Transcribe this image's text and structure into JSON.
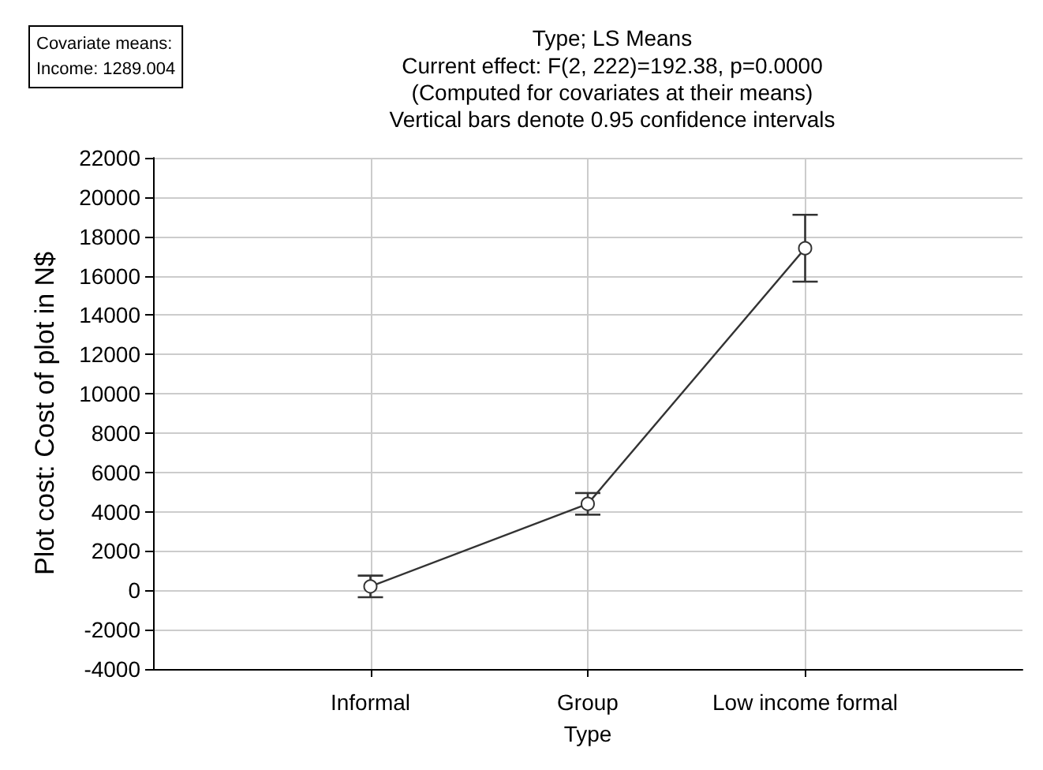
{
  "chart_data": {
    "type": "line",
    "title": "Type; LS Means",
    "subtitle": "Current effect: F(2, 222)=192.38, p=0.0000\n(Computed for covariates at their means)\nVertical bars denote 0.95 confidence intervals",
    "xlabel": "Type",
    "ylabel": "Plot cost: Cost of plot in N$",
    "categories": [
      "Informal",
      "Group",
      "Low income formal"
    ],
    "series": [
      {
        "color": "#333333",
        "values": [
          200,
          4400,
          17400
        ],
        "errors": [
          550,
          550,
          1700
        ]
      }
    ],
    "ylim": [
      -4000,
      22000
    ],
    "yticks": [
      -4000,
      -2000,
      0,
      2000,
      4000,
      6000,
      8000,
      10000,
      12000,
      14000,
      16000,
      18000,
      20000,
      22000
    ],
    "grid": true,
    "marker": "circle",
    "line_style": "solid",
    "annotations": [
      "Covariate means:\nIncome: 1289.004"
    ]
  }
}
